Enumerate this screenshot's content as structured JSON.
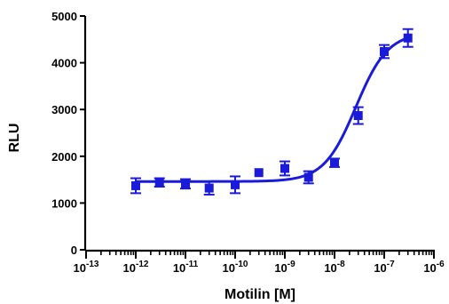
{
  "chart_data": {
    "type": "scatter",
    "title": "",
    "xlabel": "Motilin [M]",
    "ylabel": "RLU",
    "x_scale": "log10",
    "xlim": [
      1e-13,
      1e-06
    ],
    "ylim": [
      0,
      5000
    ],
    "x_tick_labels": [
      {
        "base": "10",
        "exp": "-13",
        "value": 1e-13
      },
      {
        "base": "10",
        "exp": "-12",
        "value": 1e-12
      },
      {
        "base": "10",
        "exp": "-11",
        "value": 1e-11
      },
      {
        "base": "10",
        "exp": "-10",
        "value": 1e-10
      },
      {
        "base": "10",
        "exp": "-9",
        "value": 1e-09
      },
      {
        "base": "10",
        "exp": "-8",
        "value": 1e-08
      },
      {
        "base": "10",
        "exp": "-7",
        "value": 1e-07
      },
      {
        "base": "10",
        "exp": "-6",
        "value": 1e-06
      }
    ],
    "y_tick_labels": [
      "0",
      "1000",
      "2000",
      "3000",
      "4000",
      "5000"
    ],
    "y_ticks": [
      0,
      1000,
      2000,
      3000,
      4000,
      5000
    ],
    "grid": false,
    "legend": "none",
    "series": [
      {
        "marker": "square",
        "color": "#1a1adb",
        "points": [
          {
            "x": 1e-12,
            "y": 1370,
            "err": 160
          },
          {
            "x": 3e-12,
            "y": 1440,
            "err": 90
          },
          {
            "x": 1e-11,
            "y": 1410,
            "err": 100
          },
          {
            "x": 3e-11,
            "y": 1320,
            "err": 140
          },
          {
            "x": 1e-10,
            "y": 1390,
            "err": 180
          },
          {
            "x": 3e-10,
            "y": 1650,
            "err": 0
          },
          {
            "x": 1e-09,
            "y": 1740,
            "err": 150
          },
          {
            "x": 3e-09,
            "y": 1550,
            "err": 130
          },
          {
            "x": 1e-08,
            "y": 1860,
            "err": 90
          },
          {
            "x": 3e-08,
            "y": 2870,
            "err": 180
          },
          {
            "x": 1e-07,
            "y": 4240,
            "err": 140
          },
          {
            "x": 3e-07,
            "y": 4530,
            "err": 190
          }
        ]
      }
    ],
    "fit_curve": {
      "type": "sigmoidal dose-response",
      "color": "#1a1adb",
      "bottom": 1460,
      "top": 4650,
      "log_ec50": -7.57,
      "hill_slope": 1.35
    }
  }
}
